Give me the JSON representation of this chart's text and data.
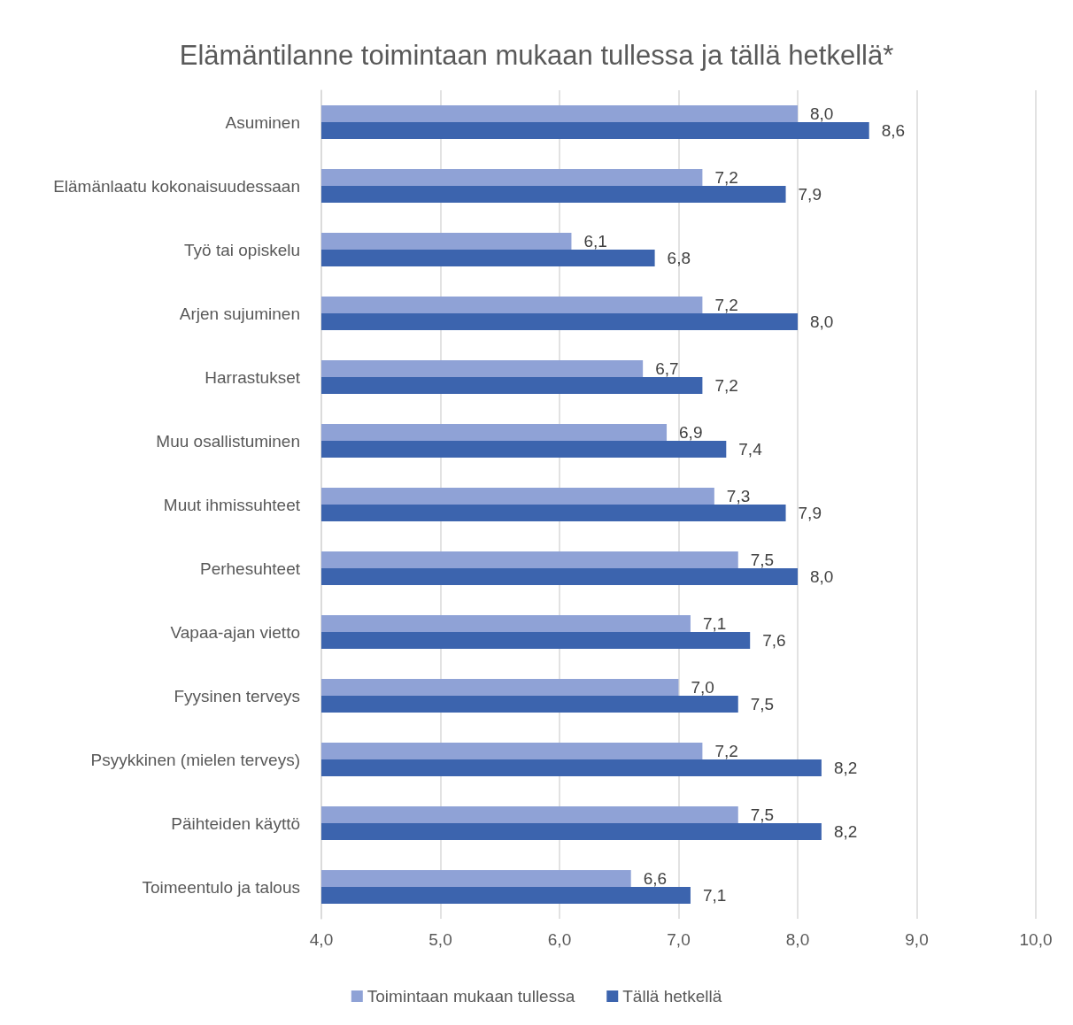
{
  "chart_data": {
    "type": "bar",
    "orientation": "horizontal",
    "title": "Elämäntilanne toimintaan mukaan tullessa ja tällä hetkellä*",
    "categories": [
      "Asuminen",
      "Elämänlaatu kokonaisuudessaan",
      "Työ tai opiskelu",
      "Arjen sujuminen",
      "Harrastukset",
      "Muu osallistuminen",
      "Muut ihmissuhteet",
      "Perhesuhteet",
      "Vapaa-ajan vietto",
      "Fyysinen terveys",
      "Psyykkinen (mielen terveys)",
      "Päihteiden käyttö",
      "Toimeentulo ja talous"
    ],
    "series": [
      {
        "name": "Toimintaan mukaan tullessa",
        "color": "#8fa2d6",
        "values": [
          8.0,
          7.2,
          6.1,
          7.2,
          6.7,
          6.9,
          7.3,
          7.5,
          7.1,
          7.0,
          7.2,
          7.5,
          6.6
        ],
        "value_labels": [
          "8,0",
          "7,2",
          "6,1",
          "7,2",
          "6,7",
          "6,9",
          "7,3",
          "7,5",
          "7,1",
          "7,0",
          "7,2",
          "7,5",
          "6,6"
        ]
      },
      {
        "name": "Tällä hetkellä",
        "color": "#3c64ae",
        "values": [
          8.6,
          7.9,
          6.8,
          8.0,
          7.2,
          7.4,
          7.9,
          8.0,
          7.6,
          7.5,
          8.2,
          8.2,
          7.1
        ],
        "value_labels": [
          "8,6",
          "7,9",
          "6,8",
          "8,0",
          "7,2",
          "7,4",
          "7,9",
          "8,0",
          "7,6",
          "7,5",
          "8,2",
          "8,2",
          "7,1"
        ]
      }
    ],
    "xlim": [
      4,
      10
    ],
    "xticks": [
      {
        "value": 4,
        "label": "4,0"
      },
      {
        "value": 5,
        "label": "5,0"
      },
      {
        "value": 6,
        "label": "6,0"
      },
      {
        "value": 7,
        "label": "7,0"
      },
      {
        "value": 8,
        "label": "8,0"
      },
      {
        "value": 9,
        "label": "9,0"
      },
      {
        "value": 10,
        "label": "10,0"
      }
    ],
    "grid": "x",
    "legend": "bottom"
  }
}
